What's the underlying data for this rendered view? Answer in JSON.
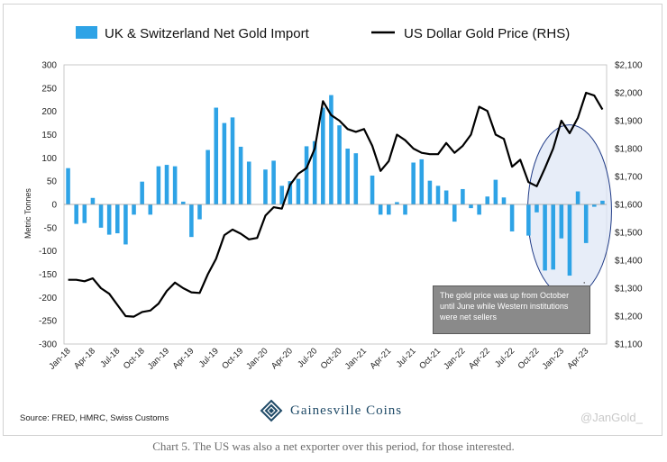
{
  "chart_data": {
    "type": "bar+line",
    "legend": {
      "position": "top",
      "bar_label": "UK & Switzerland Net Gold Import",
      "line_label": "US Dollar Gold Price (RHS)"
    },
    "y_left": {
      "label": "Metric Tonnes",
      "min": -300,
      "max": 300,
      "ticks": [
        "300",
        "250",
        "200",
        "150",
        "100",
        "50",
        "0",
        "-50",
        "-100",
        "-150",
        "-200",
        "-250",
        "-300"
      ]
    },
    "y_right": {
      "min": 1100,
      "max": 2100,
      "ticks": [
        "$2,100",
        "$2,000",
        "$1,900",
        "$1,800",
        "$1,700",
        "$1,600",
        "$1,500",
        "$1,400",
        "$1,300",
        "$1,200",
        "$1,100"
      ]
    },
    "x_tick_labels": [
      "Jan-18",
      "Apr-18",
      "Jul-18",
      "Oct-18",
      "Jan-19",
      "Apr-19",
      "Jul-19",
      "Oct-19",
      "Jan-20",
      "Apr-20",
      "Jul-20",
      "Oct-20",
      "Jan-21",
      "Apr-21",
      "Jul-21",
      "Oct-21",
      "Jan-22",
      "Apr-22",
      "Jul-22",
      "Oct-22",
      "Jan-23",
      "Apr-23"
    ],
    "months": 66,
    "series": [
      {
        "name": "UK & Switzerland Net Gold Import",
        "kind": "bar",
        "color": "#2ea3e6",
        "values": [
          78,
          -42,
          -40,
          14,
          -50,
          -65,
          -62,
          -86,
          -22,
          49,
          -22,
          82,
          85,
          82,
          6,
          -70,
          -32,
          117,
          208,
          175,
          187,
          124,
          92,
          0,
          75,
          94,
          40,
          50,
          55,
          125,
          136,
          208,
          235,
          170,
          120,
          110,
          0,
          62,
          -22,
          -22,
          5,
          -22,
          90,
          97,
          51,
          40,
          30,
          -37,
          33,
          -8,
          -22,
          17,
          53,
          15,
          -58,
          0,
          -67,
          -17,
          -142,
          -140,
          -73,
          -153,
          28,
          -83,
          -5,
          8
        ]
      },
      {
        "name": "US Dollar Gold Price (RHS)",
        "kind": "line",
        "axis": "right",
        "color": "#000000",
        "values": [
          1330,
          1330,
          1325,
          1335,
          1300,
          1280,
          1240,
          1200,
          1198,
          1215,
          1220,
          1245,
          1290,
          1320,
          1300,
          1285,
          1283,
          1350,
          1405,
          1490,
          1510,
          1495,
          1475,
          1480,
          1560,
          1590,
          1585,
          1670,
          1710,
          1730,
          1800,
          1970,
          1920,
          1900,
          1870,
          1860,
          1870,
          1810,
          1720,
          1755,
          1850,
          1830,
          1800,
          1785,
          1780,
          1780,
          1820,
          1785,
          1810,
          1850,
          1950,
          1935,
          1850,
          1835,
          1735,
          1760,
          1680,
          1665,
          1730,
          1800,
          1900,
          1855,
          1910,
          2000,
          1990,
          1940
        ]
      }
    ],
    "annotation": "The gold price was up from October until June while Western institutions were net sellers"
  },
  "footer": {
    "source": "Source: FRED, HMRC, Swiss Customs",
    "brand": "Gainesville Coins",
    "handle": "@JanGold_"
  },
  "caption": "Chart 5. The US was also a net exporter over this period, for those interested.",
  "colors": {
    "bar": "#2ea3e6",
    "line": "#000000",
    "highlight_fill": "#dfe7f5",
    "highlight_stroke": "#1f3a86"
  },
  "icons": {
    "logo": "gainesville-coins-logo-icon"
  }
}
